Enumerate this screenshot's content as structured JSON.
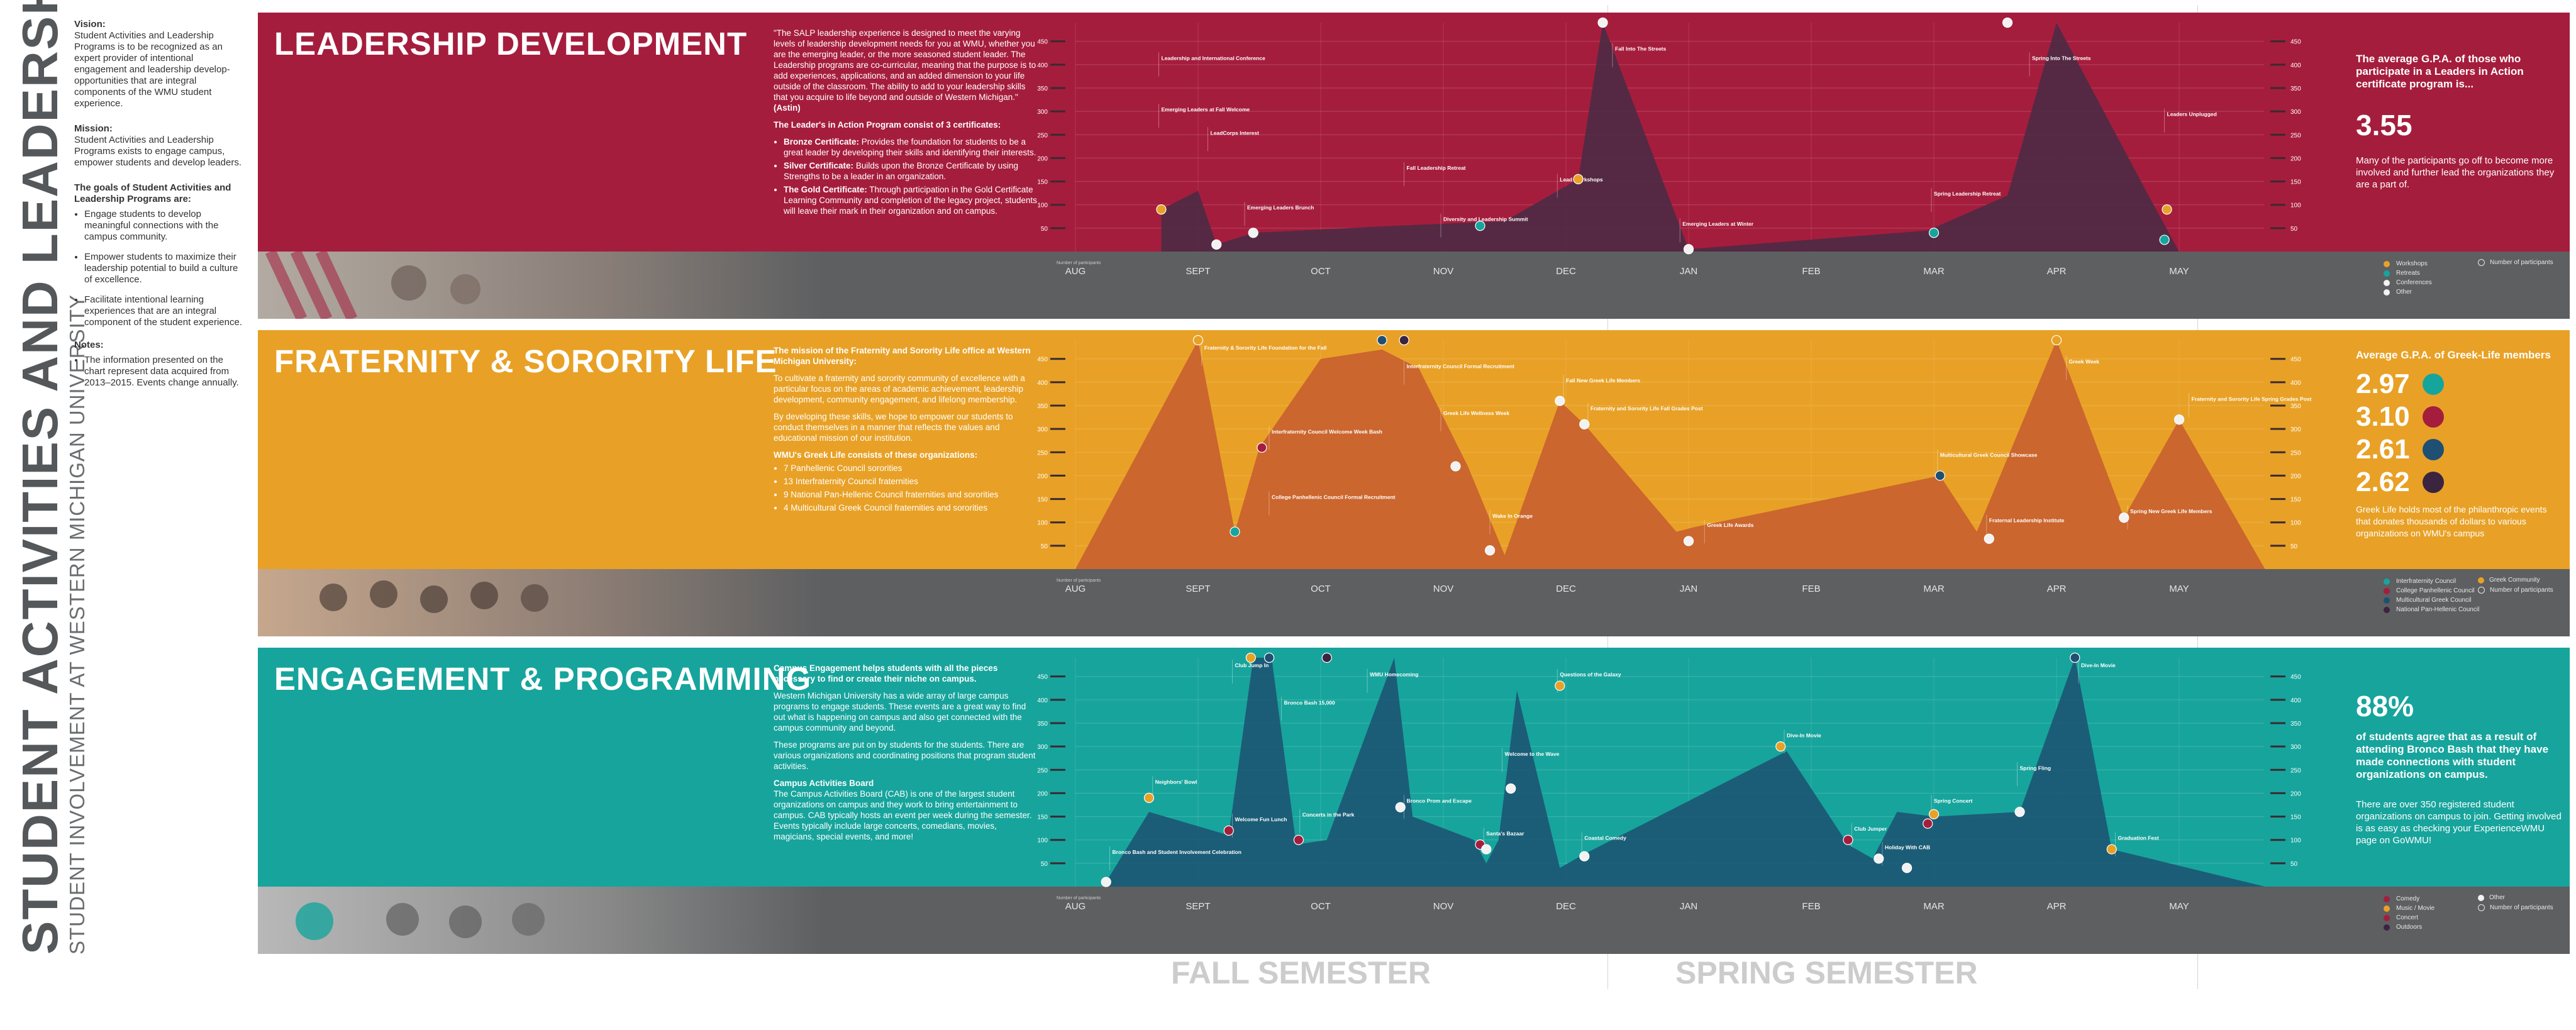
{
  "page": {
    "title": "STUDENT ACTIVITIES AND LEADERSHIP PROGRAMS",
    "subtitle": "STUDENT INVOLVEMENT AT WESTERN MICHIGAN UNIVERSITY"
  },
  "sidebar": {
    "vision_h": "Vision:",
    "vision": "Student Activities and Leadership Programs is to be recognized as an expert provider of intentional engagement and leadership develop-opportunities that are integral components of the WMU student experience.",
    "mission_h": "Mission:",
    "mission": "Student Activities and Leadership Programs exists to engage campus, empower students and develop leaders.",
    "goals_h": "The goals of Student Activities and Leadership Programs are:",
    "goals": [
      "Engage students to develop meaningful connections with the campus community.",
      "Empower students to maximize their leadership potential to build a culture of excellence.",
      "Facilitate intentional learning experiences that are an integral component of the student experience."
    ],
    "notes_h": "Notes:",
    "notes": [
      "The information presented on the chart represent data acquired from 2013–2015. Events change annually."
    ]
  },
  "sections": [
    {
      "title": "LEADERSHIP DEVELOPMENT",
      "colors": {
        "band": "#a51d3d",
        "fill": "#4e2a43"
      },
      "desc_intro": "\"The SALP leadership experience is designed to meet the varying levels of leadership development needs for you at WMU, whether you are the emerging leader, or the more seasoned student leader. The Leadership programs are co-curricular, meaning that the purpose is to add experiences, applications, and an added dimension to your life outside of the classroom. The ability to add to your leadership skills that you acquire to life beyond and outside of Western Michigan.\"",
      "desc_intro_author": "(Astin)",
      "desc_heading": "The Leader's in Action Program consist of 3 certificates:",
      "desc_items": [
        {
          "b": "Bronze Certificate:",
          "t": "Provides the foundation for students to be a great leader by developing their skills and identifying their interests."
        },
        {
          "b": "Silver Certificate:",
          "t": "Builds upon the Bronze Certificate by using Strengths to be a leader in an organization."
        },
        {
          "b": "The Gold Certificate:",
          "t": "Through participation in the Gold Certificate Learning Community and completion of the legacy project, students will leave their mark in their organization and on campus."
        }
      ],
      "stat_label": "The average G.P.A. of those who participate in a Leaders in Action certificate program is...",
      "stat_big": "3.55",
      "stat_text": "Many of the participants go off to become more involved and further lead the organizations they are a part of.",
      "legend": [
        {
          "label": "Workshops",
          "color": "#e8a126"
        },
        {
          "label": "Retreats",
          "color": "#16a59d"
        },
        {
          "label": "Conferences",
          "color": "#f2f2f2"
        },
        {
          "label": "Other",
          "color": "#f2f2f2"
        }
      ],
      "legend_note": "Number of participants"
    },
    {
      "title": "FRATERNITY & SORORITY LIFE",
      "colors": {
        "band": "#e8a126",
        "fill": "#c8612f"
      },
      "desc_intro": "The mission of the Fraternity and Sorority Life office at Western Michigan University:",
      "desc_paras": [
        "To cultivate a fraternity and sorority community of excellence with a particular focus on the areas of academic achievement, leadership development, community engagement, and lifelong membership.",
        "By developing these skills, we hope to empower our students to conduct themselves in a manner that reflects the values and educational mission of our institution."
      ],
      "desc_heading": "WMU's Greek Life consists of these organizations:",
      "desc_list": [
        "7 Panhellenic Council sororities",
        "13 Interfraternity Council fraternities",
        "9 National Pan-Hellenic Council fraternities and sororities",
        "4 Multicultural Greek Council fraternities and sororities"
      ],
      "stat_label": "Average G.P.A. of Greek-Life members",
      "gpa": [
        {
          "value": "2.97",
          "color": "#16a59d"
        },
        {
          "value": "3.10",
          "color": "#a51d3d"
        },
        {
          "value": "2.61",
          "color": "#1f4f73"
        },
        {
          "value": "2.62",
          "color": "#3a2440"
        }
      ],
      "stat_text": "Greek Life holds most of the philanthropic events that donates thousands of dollars to various organizations on WMU's campus",
      "legend": [
        {
          "label": "Interfraternity Council",
          "color": "#16a59d"
        },
        {
          "label": "Greek Community",
          "color": "#e8a126"
        },
        {
          "label": "College Panhellenic Council",
          "color": "#a51d3d"
        },
        {
          "label": "Multicultural Greek Council",
          "color": "#1f4f73"
        },
        {
          "label": "National Pan-Hellenic Council",
          "color": "#3a2440"
        }
      ],
      "legend_note": "Number of participants"
    },
    {
      "title": "ENGAGEMENT & PROGRAMMING",
      "colors": {
        "band": "#17a49c",
        "fill": "#1c5774"
      },
      "desc_intro": "Campus Engagement helps students with all the pieces necessary to find or create their niche on campus.",
      "desc_paras": [
        "Western Michigan University has a wide array of large campus programs to engage students. These events are a great way to find out what is happening on campus and also get connected with the campus community and beyond.",
        "These programs are put on by students for the students. There are various organizations and coordinating positions that program student activities."
      ],
      "desc_heading": "Campus Activities Board",
      "desc_body": "The Campus Activities Board (CAB) is one of the largest student organizations on campus and they work to bring entertainment to campus. CAB typically hosts an event per week during the semester. Events typically include large concerts, comedians, movies, magicians, special events, and more!",
      "stat_big": "88%",
      "stat_label": "of students agree that as a result of attending Bronco Bash that they have made connections with student organizations on campus.",
      "stat_text": "There are over 350 registered student organizations on campus to join. Getting involved is as easy as checking your ExperienceWMU page on GoWMU!",
      "legend": [
        {
          "label": "Comedy",
          "color": "#a51d3d"
        },
        {
          "label": "Music / Movie",
          "color": "#e8a126"
        },
        {
          "label": "Concert",
          "color": "#a51d3d"
        },
        {
          "label": "Outdoors",
          "color": "#3a2440"
        },
        {
          "label": "Other",
          "color": "#f2f2f2"
        }
      ],
      "legend_note": "Number of participants"
    }
  ],
  "semesters": {
    "fall": "FALL SEMESTER",
    "spring": "SPRING SEMESTER"
  },
  "chart_data": [
    {
      "type": "area",
      "title": "LEADERSHIP DEVELOPMENT",
      "months": [
        "AUG",
        "SEPT",
        "OCT",
        "NOV",
        "DEC",
        "JAN",
        "FEB",
        "MAR",
        "APR",
        "MAY"
      ],
      "yticks": [
        50,
        100,
        150,
        200,
        250,
        300,
        350,
        400,
        450
      ],
      "ylim": [
        0,
        490
      ],
      "x": [
        0.7,
        1.0,
        1.15,
        1.45,
        2.6,
        3.5,
        4.1,
        4.3,
        5.0,
        6.95,
        7.6,
        8.0,
        8.75,
        9.0
      ],
      "values": [
        90,
        130,
        15,
        40,
        55,
        65,
        155,
        490,
        5,
        45,
        120,
        490,
        120,
        0
      ],
      "points": [
        {
          "x": 0.7,
          "y": 90,
          "color": "#e8a126"
        },
        {
          "x": 1.15,
          "y": 15,
          "color": "#f2f2f2"
        },
        {
          "x": 1.45,
          "y": 40,
          "color": "#f2f2f2"
        },
        {
          "x": 3.3,
          "y": 55,
          "color": "#16a59d"
        },
        {
          "x": 4.1,
          "y": 155,
          "color": "#e8a126"
        },
        {
          "x": 4.3,
          "y": 490,
          "color": "#f2f2f2"
        },
        {
          "x": 5.0,
          "y": 5,
          "color": "#f2f2f2"
        },
        {
          "x": 7.0,
          "y": 40,
          "color": "#16a59d"
        },
        {
          "x": 7.6,
          "y": 490,
          "color": "#f2f2f2"
        },
        {
          "x": 8.9,
          "y": 90,
          "color": "#e8a126"
        },
        {
          "x": 8.88,
          "y": 25,
          "color": "#16a59d"
        }
      ],
      "labels": [
        {
          "x": 0.7,
          "y": 410,
          "text": "Leadership and International Conference"
        },
        {
          "x": 0.7,
          "y": 300,
          "text": "Emerging Leaders at Fall Welcome"
        },
        {
          "x": 1.1,
          "y": 250,
          "text": "LeadCorps Interest"
        },
        {
          "x": 1.4,
          "y": 90,
          "text": "Emerging Leaders Brunch"
        },
        {
          "x": 2.7,
          "y": 175,
          "text": "Fall Leadership Retreat"
        },
        {
          "x": 3.0,
          "y": 65,
          "text": "Diversity and Leadership Summit"
        },
        {
          "x": 3.95,
          "y": 150,
          "text": "Lead Workshops"
        },
        {
          "x": 4.4,
          "y": 430,
          "text": "Fall Into The Streets"
        },
        {
          "x": 4.95,
          "y": 55,
          "text": "Emerging Leaders at Winter"
        },
        {
          "x": 7.0,
          "y": 120,
          "text": "Spring Leadership Retreat"
        },
        {
          "x": 7.8,
          "y": 410,
          "text": "Spring Into The Streets"
        },
        {
          "x": 8.9,
          "y": 290,
          "text": "Leaders Unplugged"
        }
      ]
    },
    {
      "type": "area",
      "title": "FRATERNITY & SORORITY LIFE",
      "months": [
        "AUG",
        "SEPT",
        "OCT",
        "NOV",
        "DEC",
        "JAN",
        "FEB",
        "MAR",
        "APR",
        "MAY"
      ],
      "yticks": [
        50,
        100,
        150,
        200,
        250,
        300,
        350,
        400,
        450
      ],
      "ylim": [
        0,
        490
      ],
      "x": [
        0.0,
        1.0,
        1.3,
        1.5,
        2.0,
        2.5,
        2.8,
        3.2,
        3.5,
        3.95,
        4.15,
        4.9,
        5.05,
        7.05,
        7.35,
        8.0,
        8.55,
        9.0,
        9.7
      ],
      "values": [
        0,
        490,
        80,
        260,
        450,
        470,
        430,
        220,
        30,
        360,
        310,
        80,
        90,
        200,
        80,
        490,
        110,
        320,
        0
      ],
      "points": [
        {
          "x": 1.0,
          "y": 490,
          "color": "#e8a126"
        },
        {
          "x": 1.3,
          "y": 80,
          "color": "#16a59d"
        },
        {
          "x": 1.52,
          "y": 260,
          "color": "#a51d3d"
        },
        {
          "x": 2.5,
          "y": 490,
          "color": "#1f4f73"
        },
        {
          "x": 2.68,
          "y": 490,
          "color": "#3a2440"
        },
        {
          "x": 3.1,
          "y": 220,
          "color": "#f2f2f2"
        },
        {
          "x": 3.38,
          "y": 40,
          "color": "#f2f2f2"
        },
        {
          "x": 3.95,
          "y": 360,
          "color": "#f2f2f2"
        },
        {
          "x": 4.15,
          "y": 310,
          "color": "#f2f2f2"
        },
        {
          "x": 5.0,
          "y": 60,
          "color": "#f2f2f2"
        },
        {
          "x": 7.05,
          "y": 200,
          "color": "#1f4f73"
        },
        {
          "x": 7.45,
          "y": 65,
          "color": "#f2f2f2"
        },
        {
          "x": 8.0,
          "y": 490,
          "color": "#e8a126"
        },
        {
          "x": 8.55,
          "y": 110,
          "color": "#f2f2f2"
        },
        {
          "x": 9.0,
          "y": 320,
          "color": "#f2f2f2"
        }
      ],
      "labels": [
        {
          "x": 1.05,
          "y": 470,
          "text": "Fraternity & Sorority Life Foundation for the Fall"
        },
        {
          "x": 1.6,
          "y": 290,
          "text": "Interfraternity Council Welcome Week Bash"
        },
        {
          "x": 1.6,
          "y": 150,
          "text": "College Panhellenic Council Formal Recruitment"
        },
        {
          "x": 2.7,
          "y": 430,
          "text": "Interfraternity Council Formal Recruitment"
        },
        {
          "x": 3.0,
          "y": 330,
          "text": "Greek Life Wellness Week"
        },
        {
          "x": 3.4,
          "y": 110,
          "text": "Wake In Orange"
        },
        {
          "x": 4.0,
          "y": 400,
          "text": "Fall New Greek Life Members"
        },
        {
          "x": 4.2,
          "y": 340,
          "text": "Fraternity and Sorority Life Fall Grades Post"
        },
        {
          "x": 5.15,
          "y": 90,
          "text": "Greek Life Awards"
        },
        {
          "x": 7.05,
          "y": 240,
          "text": "Multicultural Greek Council Showcase"
        },
        {
          "x": 7.45,
          "y": 100,
          "text": "Fraternal Leadership Institute"
        },
        {
          "x": 8.1,
          "y": 440,
          "text": "Greek Week"
        },
        {
          "x": 9.1,
          "y": 360,
          "text": "Fraternity and Sorority Life Spring Grades Post"
        },
        {
          "x": 8.6,
          "y": 120,
          "text": "Spring New Greek Life Members"
        }
      ]
    },
    {
      "type": "area",
      "title": "ENGAGEMENT & PROGRAMMING",
      "months": [
        "AUG",
        "SEPT",
        "OCT",
        "NOV",
        "DEC",
        "JAN",
        "FEB",
        "MAR",
        "APR",
        "MAY"
      ],
      "yticks": [
        50,
        100,
        150,
        200,
        250,
        300,
        350,
        400,
        450
      ],
      "ylim": [
        0,
        490
      ],
      "x": [
        0.25,
        0.6,
        1.25,
        1.45,
        1.6,
        1.8,
        2.05,
        2.6,
        2.75,
        3.25,
        3.35,
        3.45,
        3.6,
        3.95,
        4.15,
        5.8,
        6.3,
        6.5,
        6.7,
        7.0,
        7.7,
        8.15,
        8.45,
        9.7
      ],
      "values": [
        10,
        160,
        110,
        490,
        490,
        90,
        100,
        490,
        150,
        100,
        50,
        100,
        420,
        40,
        70,
        290,
        90,
        60,
        160,
        150,
        160,
        490,
        80,
        0
      ],
      "points": [
        {
          "x": 0.25,
          "y": 10,
          "color": "#f2f2f2"
        },
        {
          "x": 0.6,
          "y": 190,
          "color": "#e8a126"
        },
        {
          "x": 1.25,
          "y": 120,
          "color": "#a51d3d"
        },
        {
          "x": 1.43,
          "y": 490,
          "color": "#e8a126"
        },
        {
          "x": 1.58,
          "y": 490,
          "color": "#1f4f73"
        },
        {
          "x": 1.82,
          "y": 100,
          "color": "#a51d3d"
        },
        {
          "x": 2.05,
          "y": 490,
          "color": "#3a2440"
        },
        {
          "x": 2.65,
          "y": 170,
          "color": "#f2f2f2"
        },
        {
          "x": 3.3,
          "y": 90,
          "color": "#a51d3d"
        },
        {
          "x": 3.35,
          "y": 80,
          "color": "#f2f2f2"
        },
        {
          "x": 3.55,
          "y": 210,
          "color": "#f2f2f2"
        },
        {
          "x": 3.95,
          "y": 430,
          "color": "#e8a126"
        },
        {
          "x": 4.15,
          "y": 65,
          "color": "#f2f2f2"
        },
        {
          "x": 5.75,
          "y": 300,
          "color": "#e8a126"
        },
        {
          "x": 6.3,
          "y": 100,
          "color": "#a51d3d"
        },
        {
          "x": 6.55,
          "y": 60,
          "color": "#f2f2f2"
        },
        {
          "x": 6.78,
          "y": 40,
          "color": "#f2f2f2"
        },
        {
          "x": 6.95,
          "y": 135,
          "color": "#a51d3d"
        },
        {
          "x": 7.0,
          "y": 155,
          "color": "#e8a126"
        },
        {
          "x": 7.7,
          "y": 160,
          "color": "#f2f2f2"
        },
        {
          "x": 8.15,
          "y": 490,
          "color": "#1f4f73"
        },
        {
          "x": 8.45,
          "y": 80,
          "color": "#e8a126"
        }
      ],
      "labels": [
        {
          "x": 0.3,
          "y": 70,
          "text": "Bronco Bash and Student Involvement Celebration"
        },
        {
          "x": 0.65,
          "y": 220,
          "text": "Neighbors' Bowl"
        },
        {
          "x": 1.3,
          "y": 140,
          "text": "Welcome Fun Lunch"
        },
        {
          "x": 1.3,
          "y": 470,
          "text": "Club Jump In"
        },
        {
          "x": 1.7,
          "y": 390,
          "text": "Bronco Bash 15,000"
        },
        {
          "x": 1.85,
          "y": 150,
          "text": "Concerts in the Park"
        },
        {
          "x": 2.4,
          "y": 450,
          "text": "WMU Homecoming"
        },
        {
          "x": 2.7,
          "y": 180,
          "text": "Bronco Prom and Escape"
        },
        {
          "x": 3.35,
          "y": 110,
          "text": "Santa's Bazaar"
        },
        {
          "x": 3.5,
          "y": 280,
          "text": "Welcome to the Wave"
        },
        {
          "x": 3.95,
          "y": 450,
          "text": "Questions of the Galaxy"
        },
        {
          "x": 4.15,
          "y": 100,
          "text": "Coastal Comedy"
        },
        {
          "x": 5.8,
          "y": 320,
          "text": "Dive-In Movie"
        },
        {
          "x": 6.35,
          "y": 120,
          "text": "Club Jumper"
        },
        {
          "x": 6.6,
          "y": 80,
          "text": "Holiday With CAB"
        },
        {
          "x": 7.0,
          "y": 180,
          "text": "Spring Concert"
        },
        {
          "x": 7.7,
          "y": 250,
          "text": "Spring Fling"
        },
        {
          "x": 8.2,
          "y": 470,
          "text": "Dive-In Movie"
        },
        {
          "x": 8.5,
          "y": 100,
          "text": "Graduation Fest"
        }
      ]
    }
  ]
}
